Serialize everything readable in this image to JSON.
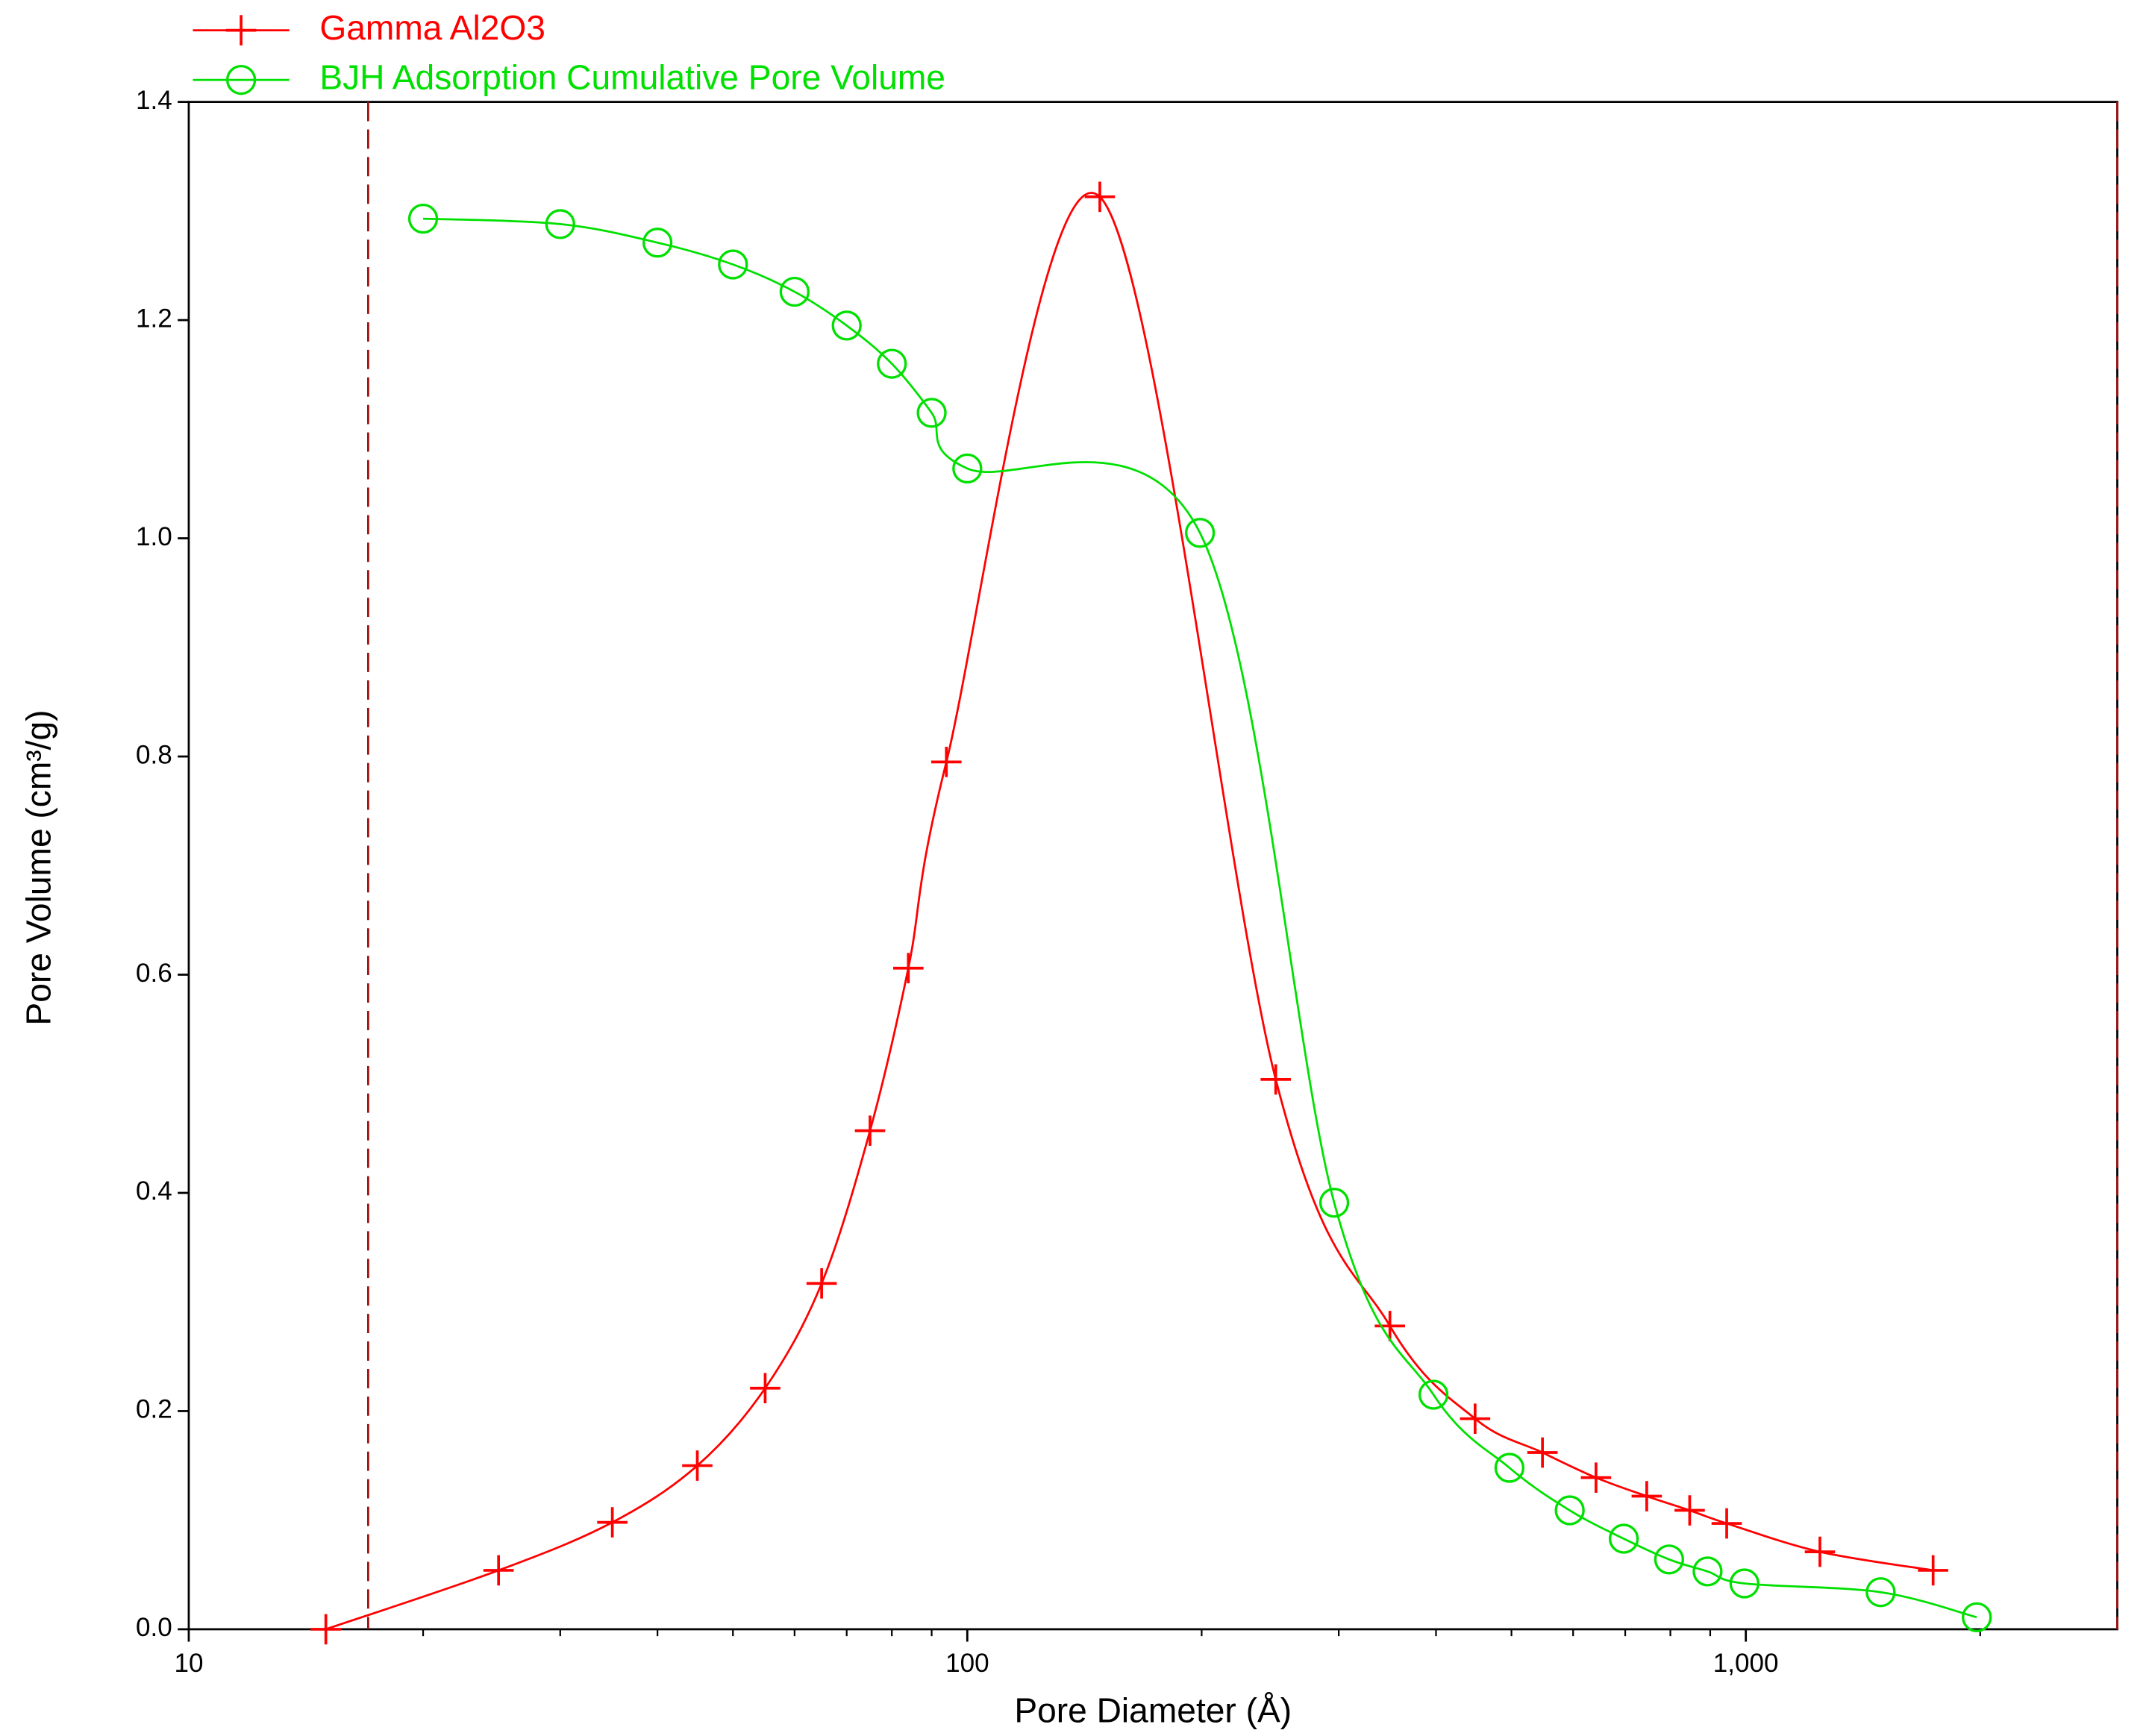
{
  "chart_data": {
    "type": "line",
    "xlabel": "Pore Diameter (Å)",
    "ylabel": "Pore Volume (cm³/g)",
    "xscale": "log",
    "xlim": [
      10,
      3000
    ],
    "ylim": [
      0,
      1.4
    ],
    "xticks": [
      10,
      100,
      {
        "value": 1000,
        "label": "1,000"
      }
    ],
    "xminorticks": [
      20,
      30,
      40,
      50,
      60,
      70,
      80,
      90,
      200,
      300,
      400,
      500,
      600,
      700,
      800,
      900,
      2000
    ],
    "yticks": [
      {
        "value": 0,
        "label": "0.0"
      },
      0.2,
      0.4,
      0.6,
      0.8,
      {
        "value": 1,
        "label": "1.0"
      },
      1.2,
      1.4
    ],
    "vlines": [
      17,
      3000
    ],
    "vline_color": "#a01010",
    "legend": "upper left",
    "series": [
      {
        "name": "Gamma Al2O3",
        "color": "#ff0000",
        "marker": "plus",
        "x": [
          15,
          25,
          35,
          45,
          55,
          65,
          75,
          84,
          94,
          148,
          249,
          349,
          449,
          548,
          642,
          746,
          847,
          945,
          1245,
          1740
        ],
        "values": [
          0.0,
          0.054,
          0.098,
          0.15,
          0.221,
          0.317,
          0.457,
          0.606,
          0.795,
          1.313,
          0.504,
          0.278,
          0.193,
          0.162,
          0.139,
          0.122,
          0.109,
          0.097,
          0.071,
          0.054
        ]
      },
      {
        "name": "BJH Adsorption Cumulative Pore Volume",
        "color": "#00e000",
        "marker": "circle",
        "x": [
          20,
          30,
          40,
          50,
          60,
          70,
          80,
          90,
          100,
          199,
          296,
          397,
          497,
          594,
          697,
          797,
          893,
          996,
          1490,
          1980
        ],
        "values": [
          1.293,
          1.288,
          1.271,
          1.251,
          1.226,
          1.195,
          1.16,
          1.115,
          1.064,
          1.005,
          0.391,
          0.215,
          0.148,
          0.109,
          0.083,
          0.064,
          0.053,
          0.042,
          0.034,
          0.011
        ]
      }
    ]
  }
}
